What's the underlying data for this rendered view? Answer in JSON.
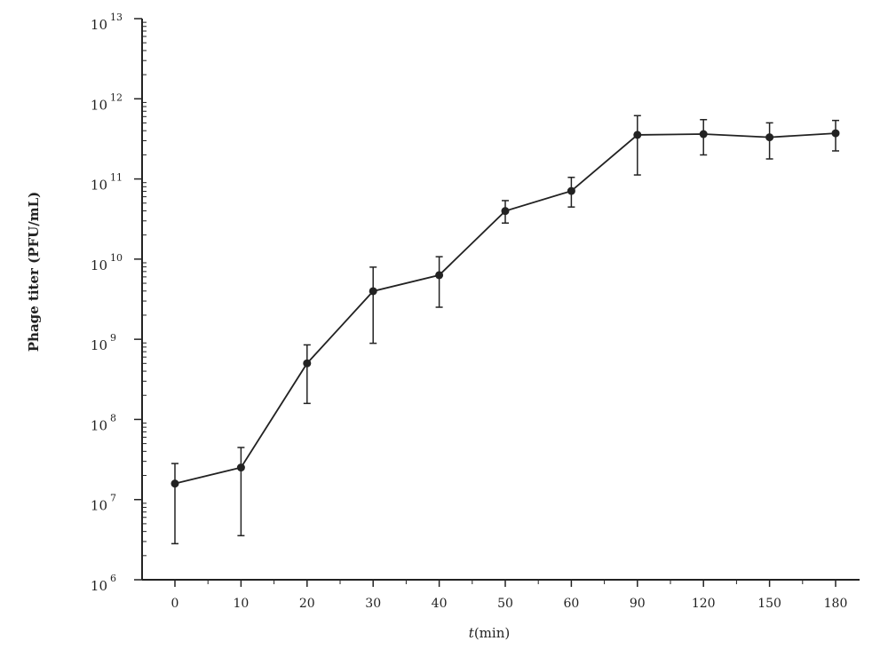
{
  "chart_data": {
    "type": "line",
    "xlabel_var": "t",
    "xlabel_unit": "(min)",
    "ylabel": "Phage titer (PFU/mL)",
    "y_scale": "log10",
    "ylim_exponents": [
      6,
      13
    ],
    "y_tick_base": "10",
    "y_tick_exponents": [
      "6",
      "7",
      "8",
      "9",
      "10",
      "11",
      "12",
      "13"
    ],
    "categories": [
      "0",
      "10",
      "20",
      "30",
      "40",
      "50",
      "60",
      "90",
      "120",
      "150",
      "180"
    ],
    "series": [
      {
        "log10_values": [
          7.2,
          7.4,
          8.7,
          9.6,
          9.8,
          10.6,
          10.85,
          11.55,
          11.56,
          11.52,
          11.57
        ],
        "log10_error_low": [
          6.45,
          6.55,
          8.2,
          8.95,
          9.4,
          10.45,
          10.65,
          11.05,
          11.3,
          11.25,
          11.35
        ],
        "log10_error_high": [
          7.45,
          7.65,
          8.93,
          9.9,
          10.03,
          10.73,
          11.02,
          11.79,
          11.74,
          11.7,
          11.73
        ]
      }
    ],
    "color": "#222222",
    "grid": false,
    "legend": "none"
  }
}
